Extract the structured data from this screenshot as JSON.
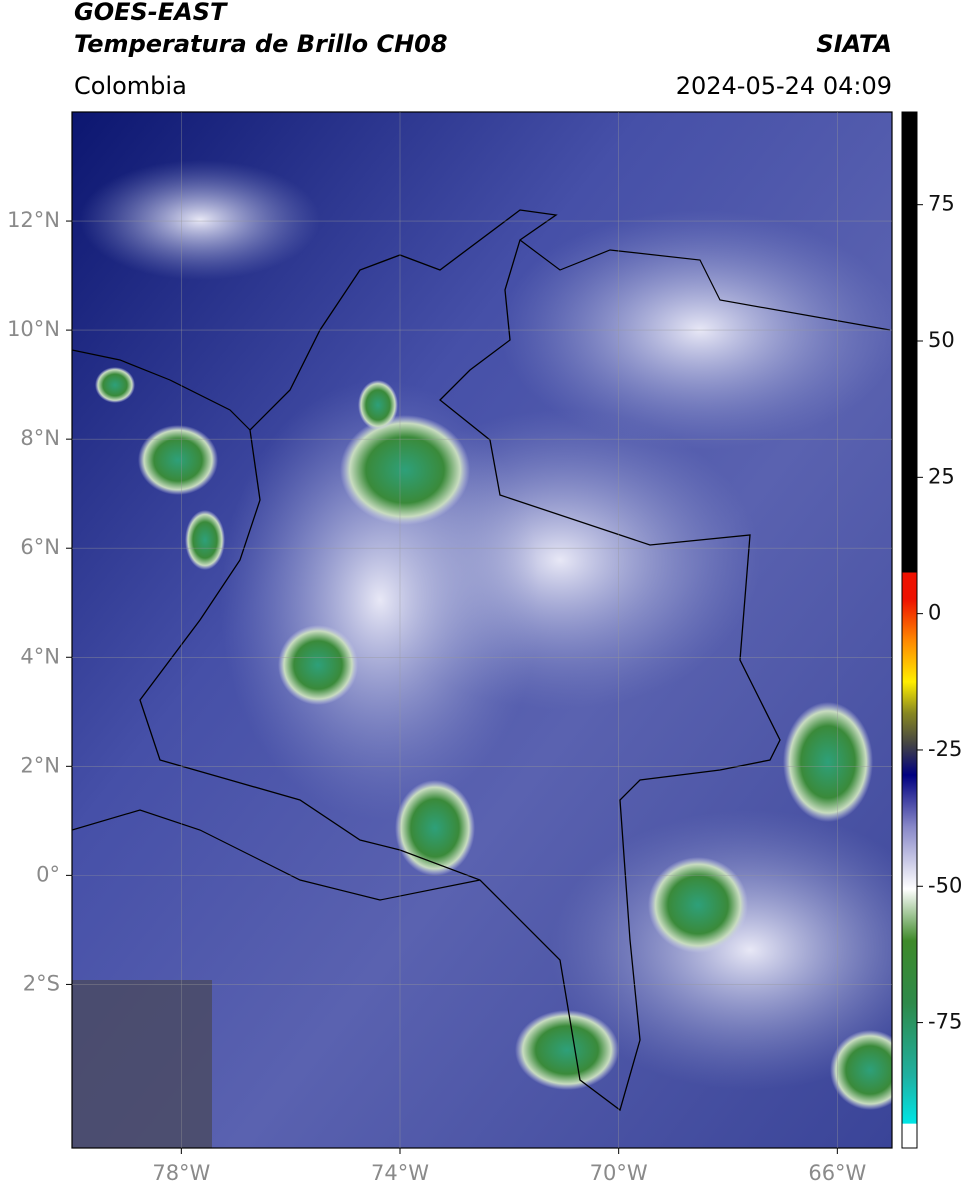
{
  "header": {
    "title_line1": "GOES-EAST",
    "title_line2": "Temperatura de Brillo CH08",
    "source": "SIATA",
    "region": "Colombia",
    "timestamp": "2024-05-24 04:09"
  },
  "map": {
    "xlim": [
      -80,
      -65
    ],
    "ylim": [
      -5,
      14
    ],
    "xticks": [
      {
        "value": -78,
        "label": "78°W"
      },
      {
        "value": -74,
        "label": "74°W"
      },
      {
        "value": -70,
        "label": "70°W"
      },
      {
        "value": -66,
        "label": "66°W"
      }
    ],
    "yticks": [
      {
        "value": 12,
        "label": "12°N"
      },
      {
        "value": 10,
        "label": "10°N"
      },
      {
        "value": 8,
        "label": "8°N"
      },
      {
        "value": 6,
        "label": "6°N"
      },
      {
        "value": 4,
        "label": "4°N"
      },
      {
        "value": 2,
        "label": "2°N"
      },
      {
        "value": 0,
        "label": "0°"
      },
      {
        "value": -2,
        "label": "2°S"
      }
    ],
    "grid": true
  },
  "colorbar": {
    "lim": [
      -98,
      92
    ],
    "ticks": [
      75,
      50,
      25,
      0,
      -25,
      -50,
      -75
    ]
  }
}
